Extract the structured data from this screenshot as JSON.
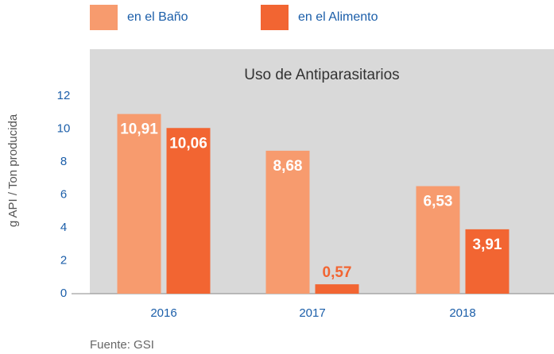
{
  "chart_data": {
    "type": "bar",
    "title": "Uso de Antiparasitarios",
    "y_label": "g API / Ton producida",
    "source": "Fuente: GSI",
    "categories": [
      "2016",
      "2017",
      "2018"
    ],
    "series": [
      {
        "name": "en el Baño",
        "color": "#f79b6e",
        "values": [
          10.91,
          8.68,
          6.53
        ],
        "value_labels": [
          "10,91",
          "8,68",
          "6,53"
        ]
      },
      {
        "name": "en el Alimento",
        "color": "#f26532",
        "values": [
          10.06,
          0.57,
          3.91
        ],
        "value_labels": [
          "10,06",
          "0,57",
          "3,91"
        ]
      }
    ],
    "ylim": [
      0,
      12
    ],
    "yticks": [
      0,
      2,
      4,
      6,
      8,
      10,
      12
    ],
    "legend": "top"
  }
}
